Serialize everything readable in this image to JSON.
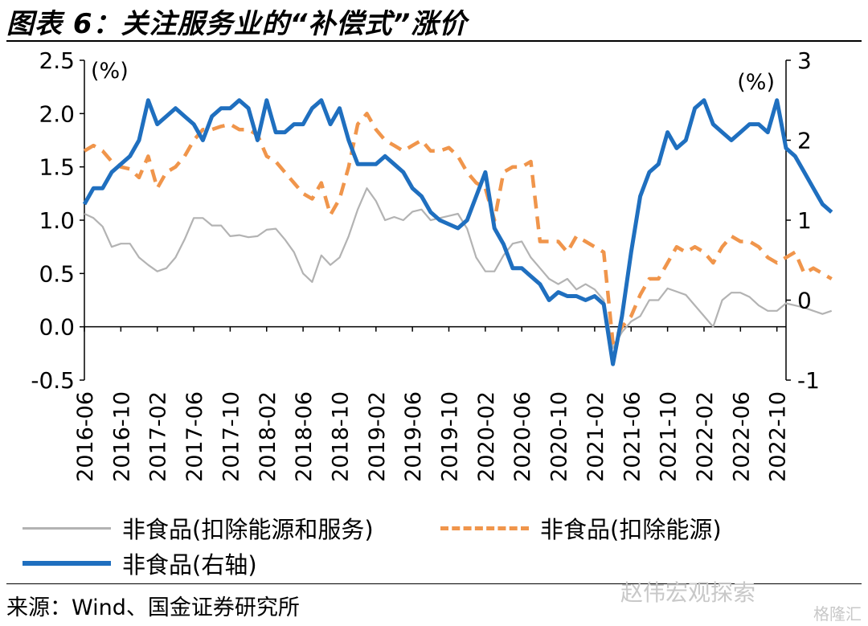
{
  "title": "图表 6：关注服务业的“补偿式”涨价",
  "source": "来源：Wind、国金证券研究所",
  "watermark": "赵伟宏观探索",
  "watermark2": "格隆汇",
  "colors": {
    "grey": "#b3b3b3",
    "orange": "#f0954b",
    "blue": "#1f6fbf"
  },
  "chart_data": {
    "type": "line",
    "left_axis_unit": "(%)",
    "right_axis_unit": "(%)",
    "ylim_left": [
      -0.5,
      2.5
    ],
    "yticks_left": [
      "2.5",
      "2.0",
      "1.5",
      "1.0",
      "0.5",
      "0.0",
      "-0.5"
    ],
    "ylim_right": [
      -1,
      3
    ],
    "yticks_right": [
      "3",
      "2",
      "1",
      "0",
      "-1"
    ],
    "x_tick_labels": [
      "2016-06",
      "2016-10",
      "2017-02",
      "2017-06",
      "2017-10",
      "2018-02",
      "2018-06",
      "2018-10",
      "2019-02",
      "2019-06",
      "2019-10",
      "2020-02",
      "2020-06",
      "2020-10",
      "2021-02",
      "2021-06",
      "2021-10",
      "2022-02",
      "2022-06",
      "2022-10"
    ],
    "x_start": "2016-06",
    "x_end": "2022-11",
    "series": [
      {
        "name": "非食品(扣除能源和服务)",
        "axis": "left",
        "style": "solid-thin",
        "values": [
          1.06,
          1.02,
          0.94,
          0.75,
          0.78,
          0.78,
          0.65,
          0.58,
          0.52,
          0.55,
          0.65,
          0.82,
          1.02,
          1.02,
          0.95,
          0.95,
          0.85,
          0.86,
          0.84,
          0.85,
          0.91,
          0.92,
          0.82,
          0.7,
          0.5,
          0.42,
          0.67,
          0.58,
          0.65,
          0.85,
          1.1,
          1.3,
          1.18,
          1.0,
          1.03,
          1.0,
          1.08,
          1.1,
          1.0,
          1.02,
          1.04,
          1.06,
          0.92,
          0.65,
          0.52,
          0.52,
          0.67,
          0.78,
          0.8,
          0.65,
          0.55,
          0.45,
          0.4,
          0.45,
          0.35,
          0.4,
          0.35,
          0.25,
          -0.2,
          -0.05,
          0.05,
          0.1,
          0.25,
          0.25,
          0.36,
          0.33,
          0.3,
          0.2,
          0.1,
          0.0,
          0.25,
          0.32,
          0.32,
          0.28,
          0.2,
          0.15,
          0.15,
          0.22,
          0.2,
          0.18,
          0.15,
          0.12,
          0.15
        ]
      },
      {
        "name": "非食品(扣除能源)",
        "axis": "left",
        "style": "dashed",
        "values": [
          1.65,
          1.7,
          1.65,
          1.55,
          1.5,
          1.48,
          1.4,
          1.6,
          1.3,
          1.45,
          1.5,
          1.6,
          1.75,
          1.85,
          1.85,
          1.88,
          1.9,
          1.85,
          1.85,
          1.8,
          1.6,
          1.55,
          1.45,
          1.35,
          1.25,
          1.2,
          1.35,
          1.05,
          1.2,
          1.5,
          1.9,
          2.0,
          1.85,
          1.75,
          1.7,
          1.65,
          1.7,
          1.75,
          1.65,
          1.65,
          1.68,
          1.6,
          1.45,
          1.35,
          1.3,
          1.0,
          1.45,
          1.5,
          1.5,
          1.55,
          0.8,
          0.8,
          0.8,
          0.7,
          0.85,
          0.8,
          0.75,
          0.7,
          -0.15,
          0.0,
          0.1,
          0.3,
          0.45,
          0.45,
          0.6,
          0.75,
          0.7,
          0.75,
          0.7,
          0.6,
          0.75,
          0.85,
          0.8,
          0.8,
          0.75,
          0.65,
          0.6,
          0.65,
          0.7,
          0.5,
          0.55,
          0.5,
          0.45
        ]
      },
      {
        "name": "非食品(右轴)",
        "axis": "right",
        "style": "solid-thick",
        "values": [
          1.2,
          1.4,
          1.4,
          1.6,
          1.7,
          1.8,
          2.0,
          2.5,
          2.2,
          2.3,
          2.4,
          2.3,
          2.2,
          2.0,
          2.3,
          2.4,
          2.4,
          2.5,
          2.4,
          2.0,
          2.5,
          2.1,
          2.1,
          2.2,
          2.2,
          2.4,
          2.5,
          2.2,
          2.4,
          2.0,
          1.7,
          1.7,
          1.7,
          1.8,
          1.7,
          1.6,
          1.4,
          1.3,
          1.1,
          1.0,
          0.95,
          0.9,
          1.0,
          1.3,
          1.6,
          0.9,
          0.7,
          0.4,
          0.4,
          0.3,
          0.2,
          0.0,
          0.1,
          0.05,
          0.05,
          0.0,
          0.05,
          -0.05,
          -0.8,
          -0.2,
          0.6,
          1.3,
          1.6,
          1.7,
          2.1,
          1.9,
          2.0,
          2.4,
          2.5,
          2.2,
          2.1,
          2.0,
          2.1,
          2.2,
          2.2,
          2.1,
          2.5,
          1.9,
          1.8,
          1.6,
          1.4,
          1.2,
          1.1
        ]
      }
    ]
  }
}
